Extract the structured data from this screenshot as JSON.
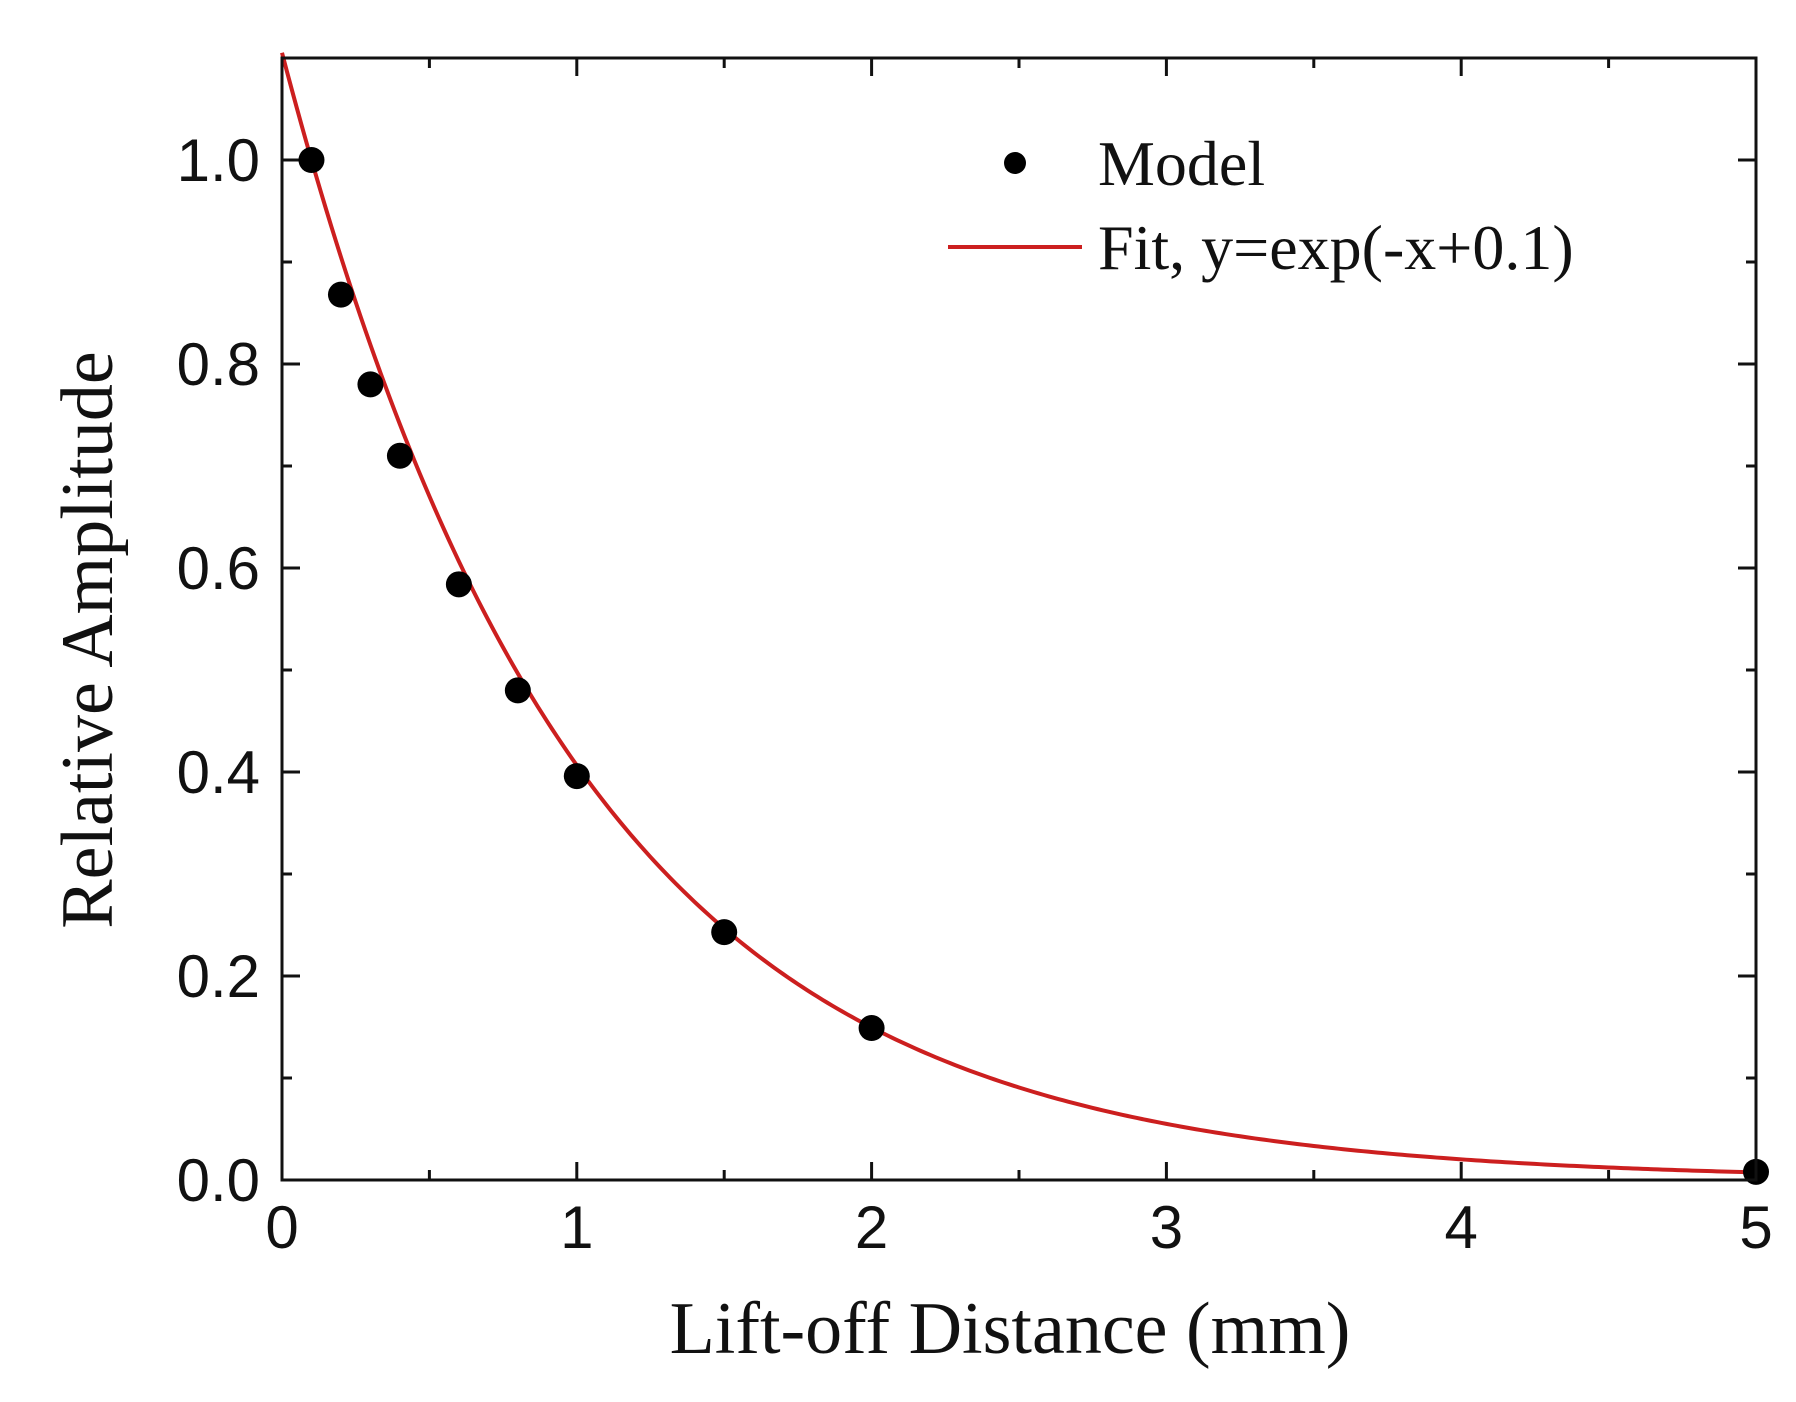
{
  "chart_data": {
    "type": "scatter",
    "title": "",
    "xlabel": "Lift-off Distance (mm)",
    "ylabel": "Relative Amplitude",
    "xlim": [
      0,
      5
    ],
    "ylim": [
      0,
      1.1
    ],
    "x_ticks": [
      0,
      1,
      2,
      3,
      4,
      5
    ],
    "x_tick_labels": [
      "0",
      "1",
      "2",
      "3",
      "4",
      "5"
    ],
    "y_ticks": [
      0,
      0.2,
      0.4,
      0.6,
      0.8,
      1.0
    ],
    "y_tick_labels": [
      "0.0",
      "0.2",
      "0.4",
      "0.6",
      "0.8",
      "1.0"
    ],
    "grid": false,
    "legend_position": "top-right",
    "series": [
      {
        "name": "Model",
        "kind": "scatter",
        "color": "#000000",
        "x": [
          0.1,
          0.2,
          0.3,
          0.4,
          0.6,
          0.8,
          1.0,
          1.5,
          2.0,
          5.0
        ],
        "y": [
          1.0,
          0.868,
          0.78,
          0.71,
          0.584,
          0.48,
          0.396,
          0.243,
          0.149,
          0.008
        ]
      },
      {
        "name": "Fit, y=exp(-x+0.1)",
        "kind": "line",
        "color": "#cc1f1f",
        "function": "exp(-x+0.1)",
        "x_range": [
          0,
          5
        ]
      }
    ]
  }
}
